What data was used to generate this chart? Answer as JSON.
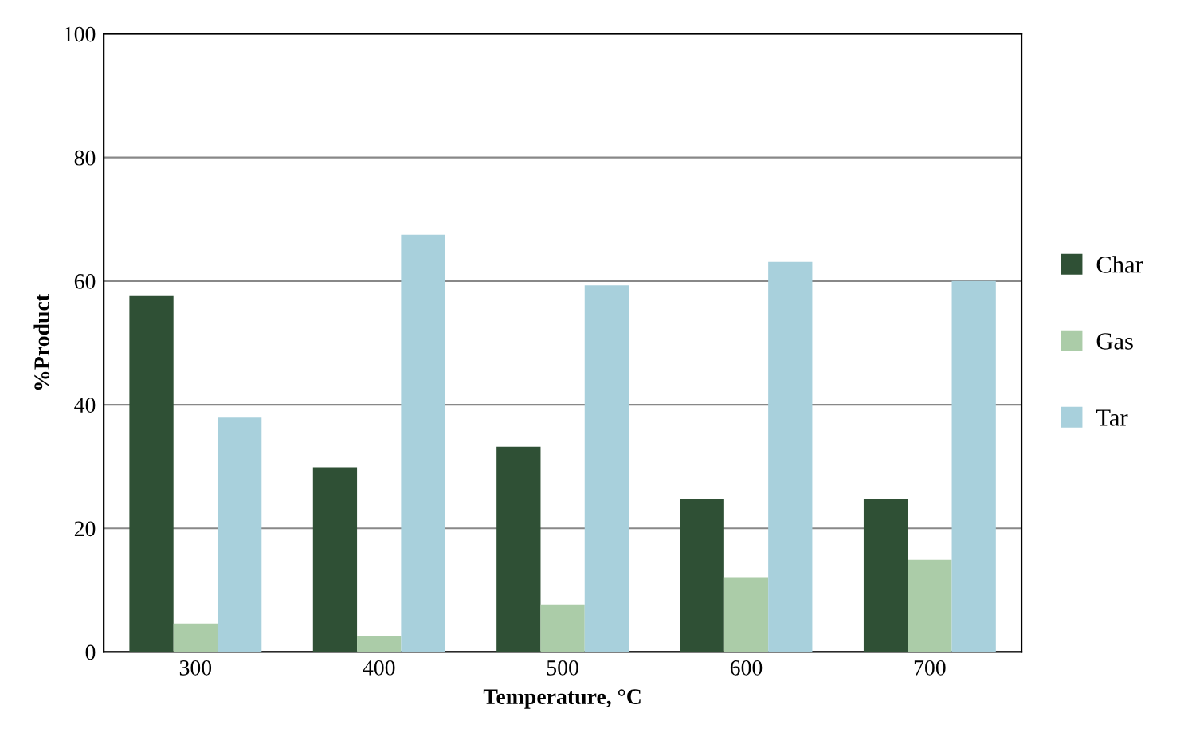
{
  "chart_data": {
    "type": "bar",
    "xlabel": "Temperature, °C",
    "ylabel": "%Product",
    "categories": [
      "300",
      "400",
      "500",
      "600",
      "700"
    ],
    "series": [
      {
        "name": "Char",
        "color": "#2f5035",
        "values": [
          57.7,
          29.9,
          33.2,
          24.7,
          24.7
        ]
      },
      {
        "name": "Gas",
        "color": "#abcca8",
        "values": [
          4.6,
          2.6,
          7.7,
          12.1,
          14.9
        ]
      },
      {
        "name": "Tar",
        "color": "#a8d0dc",
        "values": [
          37.9,
          67.5,
          59.3,
          63.1,
          60
        ]
      }
    ],
    "ylim": [
      0,
      100
    ],
    "yticks": [
      0,
      20,
      40,
      60,
      80,
      100
    ],
    "grid": "y",
    "legend": "right"
  }
}
